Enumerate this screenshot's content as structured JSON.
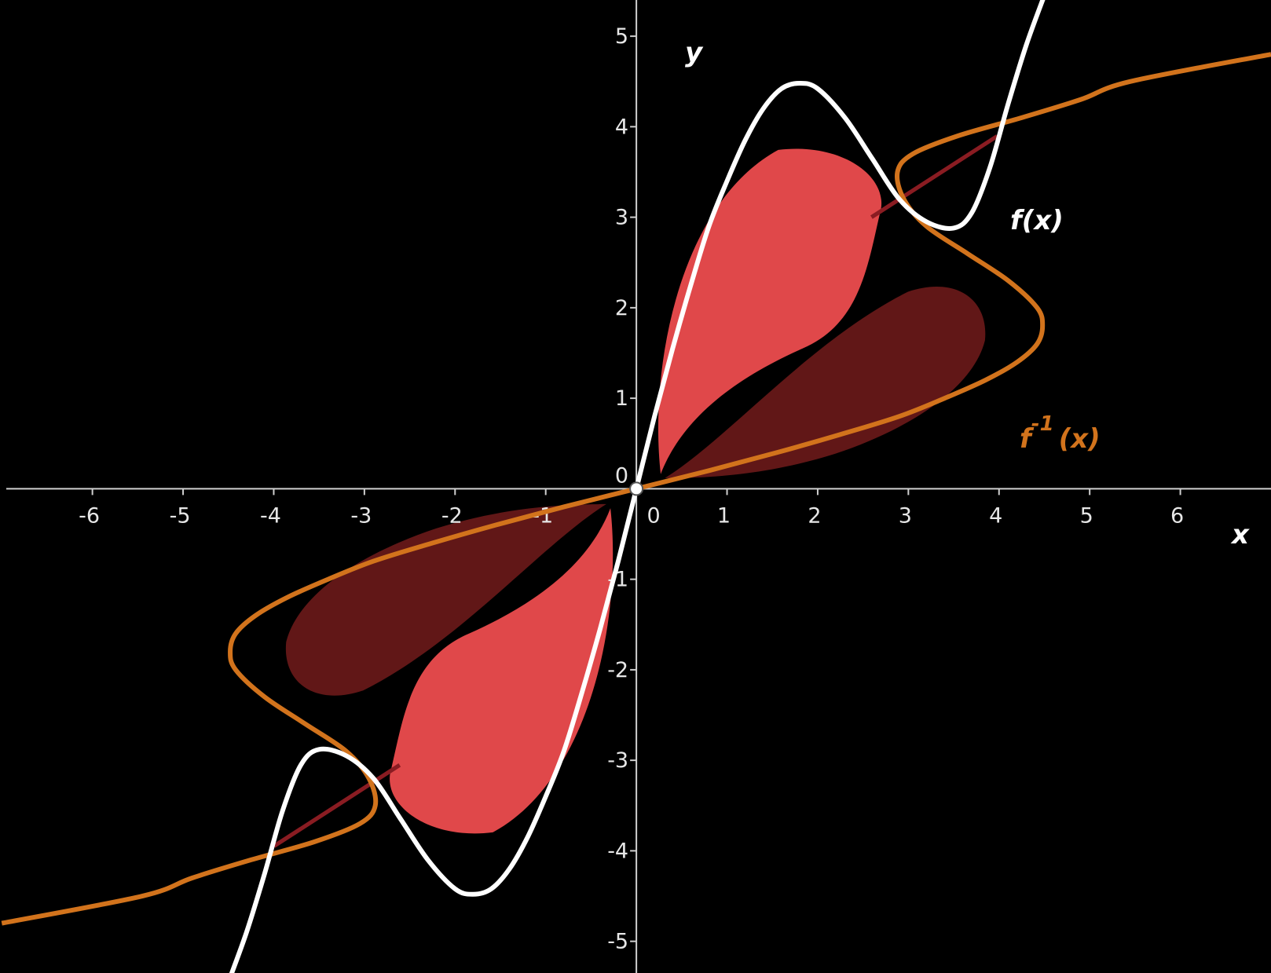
{
  "chart_data": {
    "type": "line",
    "series": [
      {
        "label": "f(x)",
        "color": "#ffffff",
        "x": [
          -4.5,
          -4.3,
          -4.1,
          -3.9,
          -3.7,
          -3.5,
          -3.2,
          -2.9,
          -2.6,
          -2.3,
          -2.0,
          -1.8,
          -1.6,
          -1.4,
          -1.2,
          -1.0,
          -0.8,
          -0.6,
          -0.4,
          -0.2,
          0,
          0.2,
          0.4,
          0.6,
          0.8,
          1.0,
          1.2,
          1.4,
          1.6,
          1.8,
          2.0,
          2.3,
          2.6,
          2.9,
          3.2,
          3.5,
          3.7,
          3.9,
          4.1,
          4.3,
          4.5
        ],
        "values": [
          -5.45,
          -4.9,
          -4.25,
          -3.55,
          -3.05,
          -2.88,
          -2.95,
          -3.2,
          -3.65,
          -4.1,
          -4.42,
          -4.48,
          -4.42,
          -4.2,
          -3.85,
          -3.4,
          -2.9,
          -2.25,
          -1.55,
          -0.8,
          0,
          0.8,
          1.55,
          2.25,
          2.9,
          3.4,
          3.85,
          4.2,
          4.42,
          4.48,
          4.42,
          4.1,
          3.65,
          3.2,
          2.95,
          2.88,
          3.05,
          3.55,
          4.25,
          4.9,
          5.45
        ]
      },
      {
        "label": {
          "base": "f",
          "sup": "-1",
          "arg": "(x)"
        },
        "color": "#d2731c",
        "x": [
          -7.0,
          -5.45,
          -4.9,
          -4.25,
          -3.55,
          -3.05,
          -2.88,
          -2.95,
          -3.2,
          -3.65,
          -4.1,
          -4.42,
          -4.48,
          -4.42,
          -4.2,
          -3.85,
          -3.4,
          -2.9,
          -2.25,
          -1.55,
          -0.8,
          0,
          0.8,
          1.55,
          2.25,
          2.9,
          3.4,
          3.85,
          4.2,
          4.42,
          4.48,
          4.42,
          4.1,
          3.65,
          3.2,
          2.95,
          2.88,
          3.05,
          3.55,
          4.25,
          4.9,
          5.45,
          7.0
        ],
        "values": [
          -4.8,
          -4.5,
          -4.3,
          -4.1,
          -3.9,
          -3.7,
          -3.5,
          -3.2,
          -2.9,
          -2.6,
          -2.3,
          -2.0,
          -1.8,
          -1.6,
          -1.4,
          -1.2,
          -1.0,
          -0.8,
          -0.6,
          -0.4,
          -0.2,
          0,
          0.2,
          0.4,
          0.6,
          0.8,
          1.0,
          1.2,
          1.4,
          1.6,
          1.8,
          2.0,
          2.3,
          2.6,
          2.9,
          3.2,
          3.5,
          3.7,
          3.9,
          4.1,
          4.3,
          4.5,
          4.8
        ]
      }
    ],
    "x_label": "x",
    "y_label": "y",
    "xlim": [
      -6.95,
      7
    ],
    "ylim": [
      -5.35,
      5.4
    ],
    "xticks": [
      -6,
      -5,
      -4,
      -3,
      -2,
      -1,
      0,
      1,
      2,
      3,
      4,
      5,
      6
    ],
    "yticks": [
      -5,
      -4,
      -3,
      -2,
      -1,
      0,
      1,
      2,
      3,
      4,
      5
    ],
    "grid": false
  }
}
